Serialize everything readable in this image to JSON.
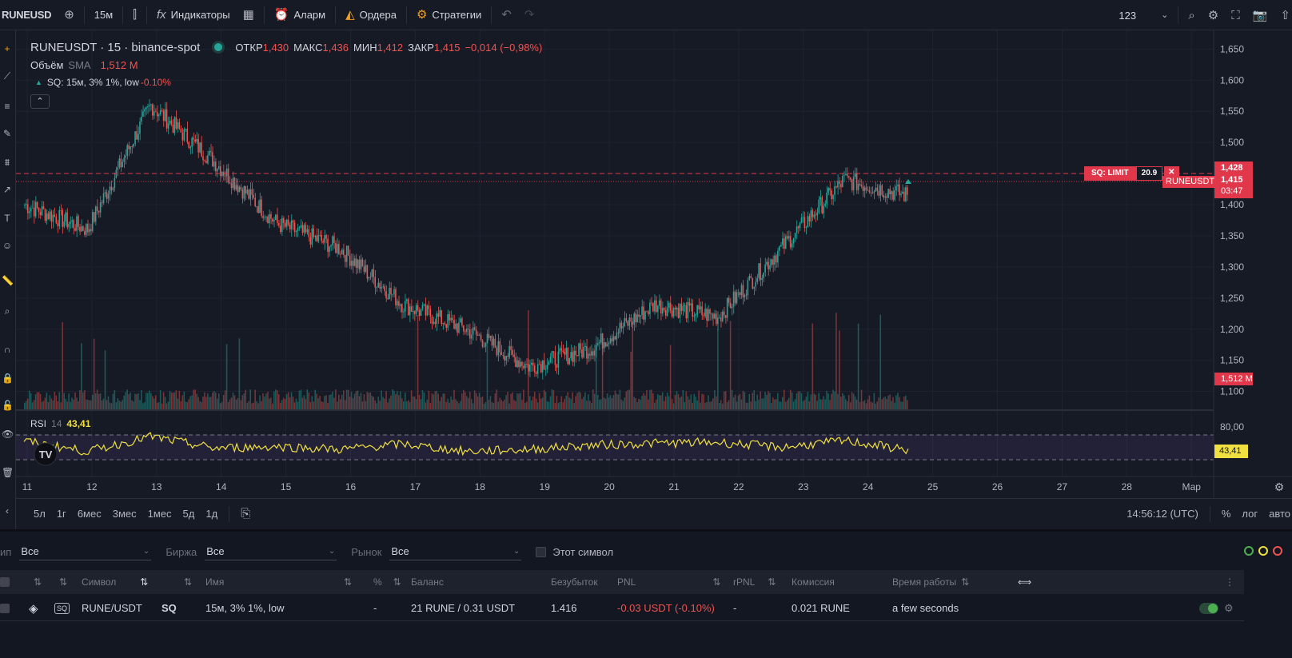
{
  "topbar": {
    "symbol": "RUNEUSD",
    "interval": "15м",
    "indicators_label": "Индикаторы",
    "alert_label": "Аларм",
    "orders_label": "Ордера",
    "strategies_label": "Стратегии",
    "layout_name": "123"
  },
  "legend": {
    "title": "RUNEUSDT · 15 · binance-spot",
    "open_label": "ОТКР",
    "open_value": "1,430",
    "high_label": "МАКС",
    "high_value": "1,436",
    "low_label": "МИН",
    "low_value": "1,412",
    "close_label": "ЗАКР",
    "close_value": "1,415",
    "change": "−0,014 (−0,98%)",
    "volume_label": "Объём",
    "volume_ma": "SMA",
    "volume_value": "1,512 M",
    "sq_label": "SQ: 15м, 3% 1%, low",
    "sq_change": "-0.10%"
  },
  "price_axis": {
    "ticks": [
      "1,650",
      "1,600",
      "1,550",
      "1,500",
      "1,450",
      "1,400",
      "1,350",
      "1,300",
      "1,250",
      "1,200",
      "1,150",
      "1,100"
    ],
    "last_price": "1,415",
    "high_tag": "1,428",
    "countdown": "03:47",
    "symbol_tag": "RUNEUSDT",
    "volume_tag": "1,512 M"
  },
  "order_line": {
    "label": "SQ: LIMIT",
    "qty": "20.9",
    "close_glyph": "✕"
  },
  "rsi": {
    "label": "RSI",
    "length": "14",
    "value": "43,41",
    "upper_tick": "80,00",
    "value_tag": "43,41"
  },
  "time_axis": {
    "ticks": [
      "11",
      "12",
      "13",
      "14",
      "15",
      "16",
      "17",
      "18",
      "19",
      "20",
      "21",
      "22",
      "23",
      "24",
      "25",
      "26",
      "27",
      "28",
      "Мар"
    ]
  },
  "range_bar": {
    "ranges": [
      "5л",
      "1г",
      "6мес",
      "3мес",
      "1мес",
      "5д",
      "1д"
    ],
    "clock": "14:56:12 (UTC)",
    "percent": "%",
    "log": "лог",
    "auto": "авто"
  },
  "filters": {
    "type_label": "ип",
    "type_value": "Все",
    "exchange_label": "Биржа",
    "exchange_value": "Все",
    "market_label": "Рынок",
    "market_value": "Все",
    "this_symbol_label": "Этот символ"
  },
  "table": {
    "headers": {
      "symbol": "Символ",
      "name": "Имя",
      "percent": "%",
      "balance": "Баланс",
      "breakeven": "Безубыток",
      "pnl": "PNL",
      "rpnl": "rPNL",
      "commission": "Комиссия",
      "uptime": "Время работы"
    },
    "row": {
      "symbol": "RUNE/USDT",
      "strategy": "SQ",
      "name": "15м, 3% 1%, low",
      "percent": "-",
      "balance": "21 RUNE / 0.31 USDT",
      "breakeven": "1.416",
      "pnl": "-0.03 USDT (-0.10%)",
      "rpnl": "-",
      "commission": "0.021 RUNE",
      "uptime": "a few seconds"
    }
  },
  "colors": {
    "bg": "#161a25",
    "up": "#26a69a",
    "down": "#ef5350",
    "rsi": "#f0e040",
    "accent_red": "#e0384a"
  },
  "chart_data": {
    "type": "candlestick",
    "symbol": "RUNEUSDT",
    "x": [
      "11",
      "12",
      "13",
      "14",
      "15",
      "16",
      "17",
      "18",
      "19",
      "20",
      "21",
      "22",
      "23",
      "24",
      "24.6"
    ],
    "close": [
      1.4,
      1.36,
      1.56,
      1.47,
      1.37,
      1.33,
      1.24,
      1.2,
      1.14,
      1.17,
      1.24,
      1.22,
      1.33,
      1.44,
      1.415
    ],
    "ylim": [
      1.07,
      1.68
    ],
    "volume_last": "1,512 M",
    "rsi": [
      65,
      40,
      76,
      48,
      52,
      45,
      58,
      40,
      45,
      55,
      60,
      62,
      50,
      66,
      43.41
    ]
  }
}
